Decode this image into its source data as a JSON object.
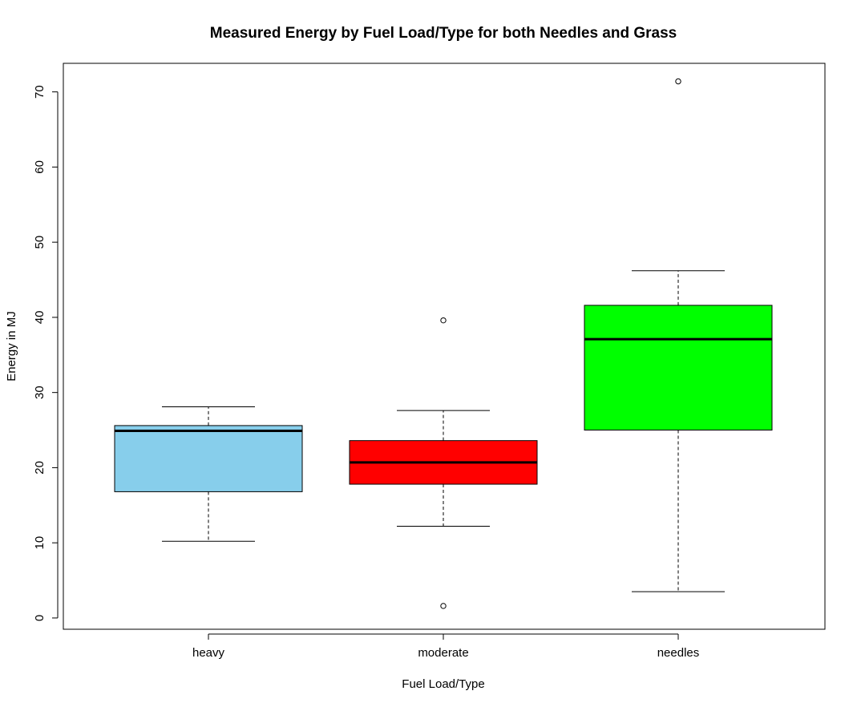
{
  "chart_data": {
    "type": "boxplot",
    "title": "Measured Energy by Fuel Load/Type for both Needles and Grass",
    "xlabel": "Fuel Load/Type",
    "ylabel": "Energy in MJ",
    "ylim": [
      -1.5,
      73.8
    ],
    "yticks": [
      "0",
      "10",
      "20",
      "30",
      "40",
      "50",
      "60",
      "70"
    ],
    "grid": false,
    "legend": "none",
    "categories": [
      "heavy",
      "moderate",
      "needles"
    ],
    "boxes": [
      {
        "category": "heavy",
        "color": "#87CEEB",
        "whisker_low": 10.2,
        "q1": 16.8,
        "median": 24.9,
        "q3": 25.6,
        "whisker_high": 28.1,
        "outliers": []
      },
      {
        "category": "moderate",
        "color": "#FF0000",
        "whisker_low": 12.2,
        "q1": 17.8,
        "median": 20.7,
        "q3": 23.6,
        "whisker_high": 27.6,
        "outliers": [
          39.6,
          1.6
        ]
      },
      {
        "category": "needles",
        "color": "#00FF00",
        "whisker_low": 3.5,
        "q1": 25.0,
        "median": 37.1,
        "q3": 41.6,
        "whisker_high": 46.2,
        "outliers": [
          71.4
        ]
      }
    ]
  }
}
